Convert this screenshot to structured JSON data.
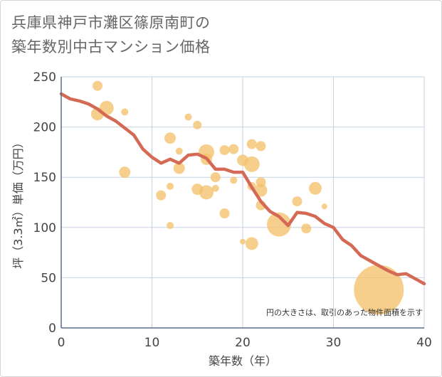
{
  "title_lines": [
    "兵庫県神戸市灘区篠原南町の",
    "築年数別中古マンション価格"
  ],
  "colors": {
    "bubble": "#f5c26b",
    "line": "#d46a55",
    "grid": "#c5d2e2",
    "axis": "#5a6e88"
  },
  "chart_data": {
    "type": "scatter",
    "xlabel": "築年数（年）",
    "ylabel": "坪（3.3㎡）単価（万円）",
    "xlim": [
      0,
      40
    ],
    "ylim": [
      0,
      250
    ],
    "x_ticks": [
      "0",
      "10",
      "20",
      "30",
      "40"
    ],
    "y_ticks": [
      "0",
      "50",
      "100",
      "150",
      "200",
      "250"
    ],
    "grid": true,
    "annotation": "円の大きさは、取引のあった物件面積を示す",
    "series": [
      {
        "type": "bubble",
        "points": [
          {
            "x": 4,
            "y": 241,
            "size": 7
          },
          {
            "x": 4,
            "y": 213,
            "size": 9
          },
          {
            "x": 5,
            "y": 219,
            "size": 10
          },
          {
            "x": 7,
            "y": 215,
            "size": 5
          },
          {
            "x": 7,
            "y": 155,
            "size": 8
          },
          {
            "x": 11,
            "y": 132,
            "size": 7
          },
          {
            "x": 12,
            "y": 189,
            "size": 8
          },
          {
            "x": 12,
            "y": 141,
            "size": 5
          },
          {
            "x": 12,
            "y": 102,
            "size": 5
          },
          {
            "x": 13,
            "y": 176,
            "size": 5
          },
          {
            "x": 13,
            "y": 159,
            "size": 8
          },
          {
            "x": 14,
            "y": 210,
            "size": 5
          },
          {
            "x": 15,
            "y": 202,
            "size": 6
          },
          {
            "x": 15,
            "y": 138,
            "size": 8
          },
          {
            "x": 16,
            "y": 175,
            "size": 11
          },
          {
            "x": 16,
            "y": 168,
            "size": 8
          },
          {
            "x": 16,
            "y": 135,
            "size": 10
          },
          {
            "x": 17,
            "y": 150,
            "size": 7
          },
          {
            "x": 17,
            "y": 139,
            "size": 5
          },
          {
            "x": 18,
            "y": 177,
            "size": 7
          },
          {
            "x": 18,
            "y": 114,
            "size": 7
          },
          {
            "x": 19,
            "y": 178,
            "size": 7
          },
          {
            "x": 19,
            "y": 147,
            "size": 5
          },
          {
            "x": 20,
            "y": 167,
            "size": 8
          },
          {
            "x": 20,
            "y": 86,
            "size": 4
          },
          {
            "x": 21,
            "y": 183,
            "size": 7
          },
          {
            "x": 21,
            "y": 163,
            "size": 11
          },
          {
            "x": 21,
            "y": 141,
            "size": 6
          },
          {
            "x": 21,
            "y": 84,
            "size": 9
          },
          {
            "x": 22,
            "y": 181,
            "size": 7
          },
          {
            "x": 22,
            "y": 145,
            "size": 7
          },
          {
            "x": 22,
            "y": 137,
            "size": 9
          },
          {
            "x": 22,
            "y": 122,
            "size": 7
          },
          {
            "x": 24,
            "y": 103,
            "size": 17
          },
          {
            "x": 26,
            "y": 126,
            "size": 7
          },
          {
            "x": 27,
            "y": 99,
            "size": 7
          },
          {
            "x": 28,
            "y": 139,
            "size": 9
          },
          {
            "x": 29,
            "y": 121,
            "size": 4
          },
          {
            "x": 35,
            "y": 38,
            "size": 35
          }
        ]
      },
      {
        "type": "line",
        "x": [
          0,
          1,
          2,
          3,
          4,
          5,
          6,
          7,
          8,
          9,
          10,
          11,
          12,
          13,
          14,
          15,
          16,
          17,
          18,
          19,
          20,
          21,
          22,
          23,
          24,
          25,
          26,
          27,
          28,
          29,
          30,
          31,
          32,
          33,
          34,
          35,
          36,
          37,
          38,
          39,
          40
        ],
        "y": [
          233,
          228,
          226,
          223,
          218,
          211,
          206,
          199,
          192,
          178,
          170,
          164,
          168,
          164,
          172,
          173,
          169,
          158,
          158,
          155,
          155,
          140,
          126,
          116,
          111,
          102,
          115,
          114,
          111,
          104,
          100,
          88,
          82,
          72,
          67,
          62,
          57,
          53,
          54,
          49,
          44
        ]
      }
    ]
  }
}
